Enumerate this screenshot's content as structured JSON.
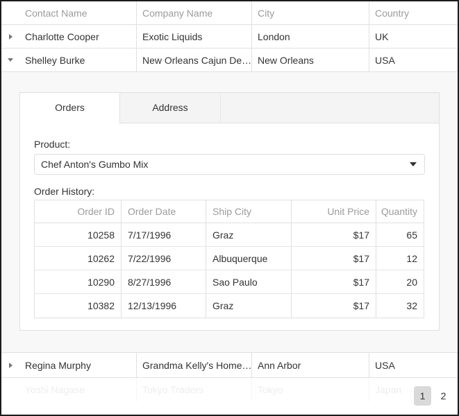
{
  "grid": {
    "columns": [
      "Contact Name",
      "Company Name",
      "City",
      "Country"
    ],
    "rows": [
      {
        "contact": "Charlotte Cooper",
        "company": "Exotic Liquids",
        "city": "London",
        "country": "UK",
        "expanded": false
      },
      {
        "contact": "Shelley Burke",
        "company": "New Orleans Cajun De…",
        "city": "New Orleans",
        "country": "USA",
        "expanded": true
      },
      {
        "contact": "Regina Murphy",
        "company": "Grandma Kelly's Home…",
        "city": "Ann Arbor",
        "country": "USA",
        "expanded": false
      }
    ],
    "ghost_row": {
      "contact": "Yoshi Nagase",
      "company": "Tokyo Traders",
      "city": "Tokyo",
      "country": "Japan"
    }
  },
  "detail": {
    "tabs": [
      {
        "label": "Orders",
        "active": true
      },
      {
        "label": "Address",
        "active": false
      }
    ],
    "product_label": "Product:",
    "product_value": "Chef Anton's Gumbo Mix",
    "order_history_label": "Order History:",
    "order_table": {
      "columns": [
        "Order ID",
        "Order Date",
        "Ship City",
        "Unit Price",
        "Quantity"
      ],
      "rows": [
        [
          "10258",
          "7/17/1996",
          "Graz",
          "$17",
          "65"
        ],
        [
          "10262",
          "7/22/1996",
          "Albuquerque",
          "$17",
          "12"
        ],
        [
          "10290",
          "8/27/1996",
          "Sao Paulo",
          "$17",
          "20"
        ],
        [
          "10382",
          "12/13/1996",
          "Graz",
          "$17",
          "32"
        ]
      ]
    }
  },
  "pager": {
    "pages": [
      "1",
      "2"
    ],
    "selected_page": "1"
  },
  "icons": {
    "collapsed_row": "triangle-right-icon",
    "expanded_row": "triangle-down-icon",
    "select_caret": "chevron-down-icon"
  },
  "colors": {
    "outer_border": "#1c1c1c",
    "grid_border": "#e0e0e0",
    "header_text": "#9b9b9b",
    "body_text": "#333333",
    "detail_bg": "#f8f8f8",
    "tab_inactive_bg": "#f4f4f4",
    "pager_selected_bg": "#d9d9d9",
    "ghost_text": "#ededed"
  }
}
